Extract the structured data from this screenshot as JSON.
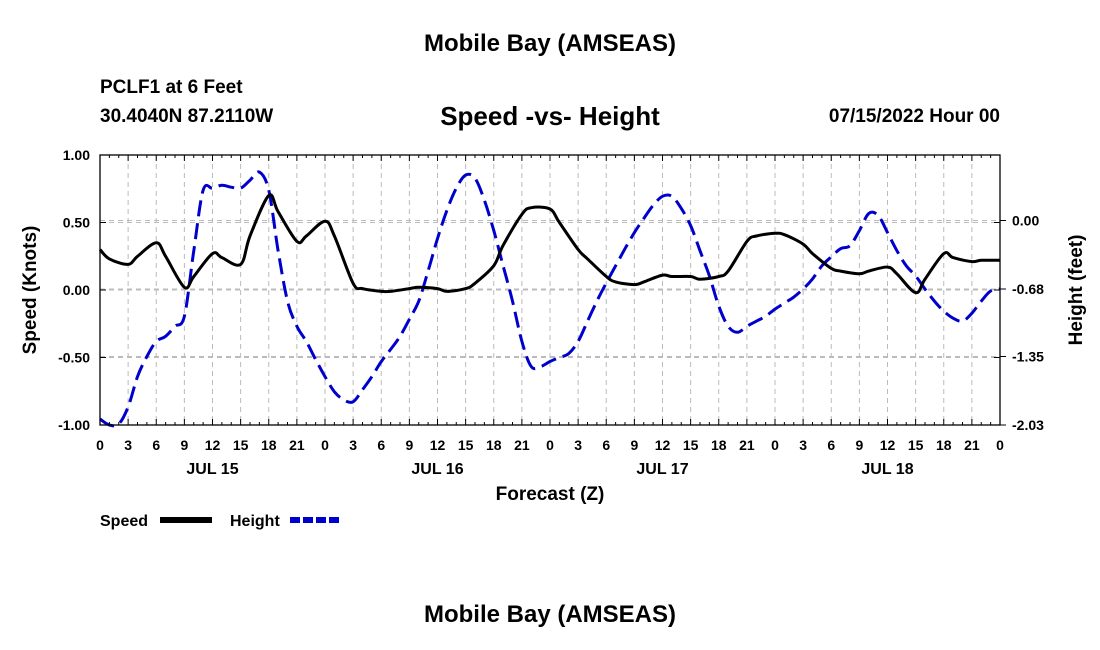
{
  "title": "Mobile Bay (AMSEAS)",
  "station": {
    "name": "PCLF1 at 6 Feet",
    "coords": "30.4040N  87.2110W"
  },
  "run_time": "07/15/2022 Hour 00",
  "footer_title": "Mobile Bay (AMSEAS)",
  "colors": {
    "speed": "#000000",
    "height": "#0000cc",
    "grid": "#bbbbbb"
  },
  "chart_data": {
    "type": "line",
    "title": "Speed -vs- Height",
    "xlabel": "Forecast (Z)",
    "ylabel": "Speed (Knots)",
    "y2label": "Height (feet)",
    "xlim": [
      0,
      96
    ],
    "ylim": [
      -1.0,
      1.0
    ],
    "y2lim": [
      -2.03,
      0.65
    ],
    "x_ticks": [
      0,
      3,
      6,
      9,
      12,
      15,
      18,
      21,
      24,
      27,
      30,
      33,
      36,
      39,
      42,
      45,
      48,
      51,
      54,
      57,
      60,
      63,
      66,
      69,
      72,
      75,
      78,
      81,
      84,
      87,
      90,
      93,
      96
    ],
    "x_tick_labels": [
      "0",
      "3",
      "6",
      "9",
      "12",
      "15",
      "18",
      "21",
      "0",
      "3",
      "6",
      "9",
      "12",
      "15",
      "18",
      "21",
      "0",
      "3",
      "6",
      "9",
      "12",
      "15",
      "18",
      "21",
      "0",
      "3",
      "6",
      "9",
      "12",
      "15",
      "18",
      "21",
      "0"
    ],
    "date_labels": [
      {
        "x": 12,
        "label": "JUL 15"
      },
      {
        "x": 36,
        "label": "JUL 16"
      },
      {
        "x": 60,
        "label": "JUL 17"
      },
      {
        "x": 84,
        "label": "JUL 18"
      }
    ],
    "y_ticks": [
      -1.0,
      -0.5,
      0.0,
      0.5,
      1.0
    ],
    "y_tick_labels": [
      "-1.00",
      "-0.50",
      "0.00",
      "0.50",
      "1.00"
    ],
    "y2_ticks": [
      -2.03,
      -1.35,
      -0.68,
      0.0
    ],
    "y2_tick_labels": [
      "-2.03",
      "-1.35",
      "-0.68",
      "0.00"
    ],
    "grid": true,
    "legend": {
      "placement": "bottom-left"
    },
    "series": [
      {
        "name": "Speed",
        "axis": "left",
        "style": "solid",
        "x": [
          0,
          1,
          3,
          4,
          6,
          7,
          9,
          10,
          12,
          13,
          15,
          16,
          18,
          19,
          21,
          22,
          24,
          25,
          27,
          28,
          30,
          31,
          33,
          34,
          36,
          37,
          39,
          40,
          42,
          43,
          45,
          46,
          48,
          49,
          51,
          52,
          54,
          55,
          57,
          58,
          60,
          61,
          63,
          64,
          66,
          67,
          69,
          70,
          72,
          73,
          75,
          76,
          78,
          79,
          81,
          82,
          84,
          85,
          87,
          88,
          90,
          91,
          93,
          94,
          96
        ],
        "y": [
          0.3,
          0.23,
          0.19,
          0.25,
          0.35,
          0.25,
          0.02,
          0.1,
          0.27,
          0.24,
          0.19,
          0.4,
          0.7,
          0.58,
          0.36,
          0.4,
          0.51,
          0.4,
          0.05,
          0.01,
          -0.01,
          -0.01,
          0.01,
          0.02,
          0.01,
          -0.01,
          0.01,
          0.05,
          0.18,
          0.33,
          0.56,
          0.61,
          0.6,
          0.5,
          0.3,
          0.23,
          0.1,
          0.06,
          0.04,
          0.06,
          0.11,
          0.1,
          0.1,
          0.08,
          0.1,
          0.14,
          0.36,
          0.4,
          0.42,
          0.41,
          0.34,
          0.27,
          0.16,
          0.14,
          0.12,
          0.14,
          0.17,
          0.12,
          -0.02,
          0.08,
          0.27,
          0.24,
          0.21,
          0.22,
          0.22
        ]
      },
      {
        "name": "Height",
        "axis": "right",
        "style": "dashed",
        "x": [
          0,
          1,
          2,
          3,
          4,
          5,
          6,
          7,
          8,
          9,
          10,
          11,
          12,
          13,
          14,
          15,
          16,
          17,
          18,
          19,
          20,
          21,
          22,
          23,
          24,
          25,
          26,
          27,
          28,
          29,
          30,
          31,
          32,
          33,
          34,
          35,
          36,
          37,
          38,
          39,
          40,
          41,
          42,
          43,
          44,
          45,
          46,
          47,
          48,
          49,
          50,
          51,
          52,
          53,
          54,
          55,
          56,
          57,
          58,
          59,
          60,
          61,
          62,
          63,
          64,
          65,
          66,
          67,
          68,
          69,
          70,
          71,
          72,
          73,
          74,
          75,
          76,
          77,
          78,
          79,
          80,
          81,
          82,
          83,
          84,
          85,
          86,
          87,
          88,
          89,
          90,
          91,
          92,
          93,
          94,
          95,
          96
        ],
        "y": [
          -1.97,
          -2.03,
          -2.02,
          -1.85,
          -1.55,
          -1.35,
          -1.2,
          -1.15,
          -1.05,
          -0.95,
          -0.3,
          0.3,
          0.32,
          0.35,
          0.33,
          0.32,
          0.4,
          0.48,
          0.3,
          -0.3,
          -0.8,
          -1.05,
          -1.2,
          -1.38,
          -1.55,
          -1.7,
          -1.78,
          -1.8,
          -1.68,
          -1.55,
          -1.4,
          -1.28,
          -1.15,
          -0.98,
          -0.8,
          -0.5,
          -0.18,
          0.1,
          0.32,
          0.45,
          0.42,
          0.2,
          -0.1,
          -0.45,
          -0.8,
          -1.2,
          -1.45,
          -1.45,
          -1.4,
          -1.36,
          -1.32,
          -1.2,
          -1.0,
          -0.8,
          -0.62,
          -0.45,
          -0.28,
          -0.12,
          0.02,
          0.15,
          0.24,
          0.24,
          0.12,
          -0.05,
          -0.3,
          -0.55,
          -0.85,
          -1.05,
          -1.11,
          -1.05,
          -1.0,
          -0.95,
          -0.88,
          -0.82,
          -0.76,
          -0.68,
          -0.58,
          -0.45,
          -0.36,
          -0.28,
          -0.25,
          -0.1,
          0.07,
          0.05,
          -0.12,
          -0.3,
          -0.45,
          -0.55,
          -0.68,
          -0.8,
          -0.9,
          -0.97,
          -1.0,
          -0.92,
          -0.8,
          -0.7,
          -0.68
        ]
      }
    ]
  }
}
